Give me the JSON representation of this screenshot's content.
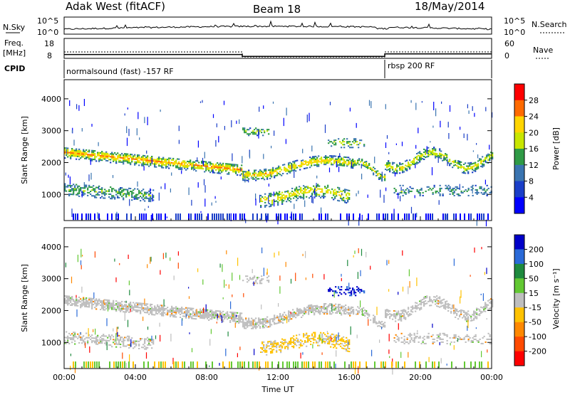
{
  "header": {
    "title": "Adak West (fitACF)",
    "beam": "Beam 18",
    "date": "18/May/2014"
  },
  "noise_panel": {
    "left_label": "N.Sky",
    "right_label": "N.Search",
    "y_ticks": [
      "10^5",
      "10^0"
    ]
  },
  "freq_panel": {
    "left_label_line1": "Freq.",
    "left_label_line2": "[MHz]",
    "left_ticks": [
      "18",
      "8"
    ],
    "right_label": "Nave",
    "right_ticks": [
      "60",
      "0"
    ],
    "cpid_label": "CPID",
    "mode_1": "normalsound (fast) -157 RF",
    "mode_2": "rbsp 200 RF",
    "freq_values": [
      {
        "t_start": 0.0,
        "t_end": 10.0,
        "mhz": 11.0
      },
      {
        "t_start": 10.0,
        "t_end": 18.0,
        "mhz": 9.5
      },
      {
        "t_start": 18.0,
        "t_end": 24.0,
        "mhz": 11.5
      }
    ]
  },
  "chart_data": [
    {
      "type": "heatmap",
      "quantity": "Power",
      "ylabel": "Slant Range [km]",
      "xlabel": "",
      "xlim": [
        0,
        24
      ],
      "ylim": [
        180,
        4600
      ],
      "y_ticks": [
        1000,
        2000,
        3000,
        4000
      ],
      "colorbar_label": "Power [dB]",
      "colorbar_ticks": [
        "28",
        "24",
        "20",
        "16",
        "12",
        "8",
        "4"
      ],
      "colorbar_colors": [
        "#ff0000",
        "#ff6a00",
        "#ffd500",
        "#c8e600",
        "#2f9a46",
        "#3a74b0",
        "#1a3ec8",
        "#0000ff"
      ]
    },
    {
      "type": "heatmap",
      "quantity": "Velocity",
      "ylabel": "Slant Range [km]",
      "xlabel": "Time UT",
      "xlim": [
        0,
        24
      ],
      "ylim": [
        180,
        4600
      ],
      "y_ticks": [
        1000,
        2000,
        3000,
        4000
      ],
      "x_ticks": [
        "00:00",
        "04:00",
        "08:00",
        "12:00",
        "16:00",
        "20:00",
        "00:00"
      ],
      "colorbar_label": "Velocity [m s⁻¹]",
      "colorbar_ticks": [
        "200",
        "100",
        "50",
        "15",
        "-15",
        "-50",
        "-100",
        "-200"
      ],
      "colorbar_colors": [
        "#0000c8",
        "#2a6ad8",
        "#1e8a3e",
        "#62c832",
        "#bebebe",
        "#ffc200",
        "#ff8800",
        "#ff4a00",
        "#ff0000"
      ]
    }
  ]
}
